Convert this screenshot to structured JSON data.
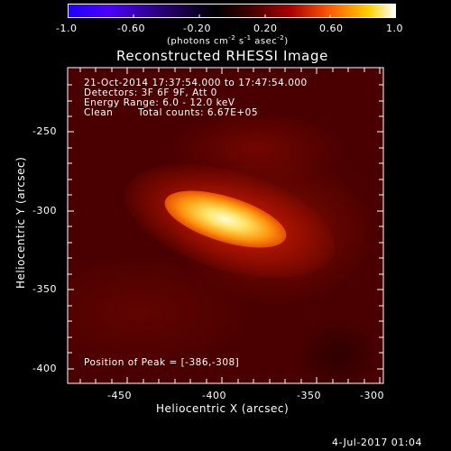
{
  "colorbar": {
    "tick_labels": [
      "-1.0",
      "-0.60",
      "-0.20",
      "0.20",
      "0.60",
      "1.0"
    ],
    "unit_prefix": "(photons cm",
    "unit_sup1": "-2",
    "unit_mid": " s",
    "unit_sup2": "-1",
    "unit_mid2": " asec",
    "unit_sup3": "-2",
    "unit_suffix": ")"
  },
  "title": "Reconstructed RHESSI Image",
  "info": {
    "line1": "21-Oct-2014 17:37:54.000 to 17:47:54.000",
    "line2": "Detectors: 3F 6F 9F, Att 0",
    "line3": "Energy Range: 6.0 - 12.0 keV",
    "line4_a": "Clean",
    "line4_b": "Total counts: 6.67E+05"
  },
  "peak_label": "Position of Peak = [-386,-308]",
  "x_axis": {
    "label": "Heliocentric X (arcsec)",
    "ticks": [
      "-450",
      "-400",
      "-350",
      "-300"
    ]
  },
  "y_axis": {
    "label": "Heliocentric Y (arcsec)",
    "ticks": [
      "-250",
      "-300",
      "-350",
      "-400"
    ]
  },
  "footer_date": "4-Jul-2017 01:04",
  "colors": {
    "background": "#000000",
    "map_base": "#4a0000",
    "peak": "#ffffd8"
  }
}
